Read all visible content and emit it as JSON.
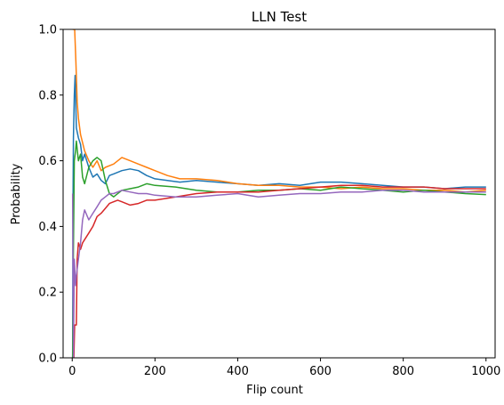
{
  "chart_data": {
    "type": "line",
    "title": "LLN Test",
    "xlabel": "Flip count",
    "ylabel": "Probability",
    "xlim": [
      -22,
      1022
    ],
    "ylim": [
      0.0,
      1.0
    ],
    "xticks": [
      0,
      200,
      400,
      600,
      800,
      1000
    ],
    "yticks": [
      0.0,
      0.2,
      0.4,
      0.6,
      0.8,
      1.0
    ],
    "xtick_labels": [
      "0",
      "200",
      "400",
      "600",
      "800",
      "1000"
    ],
    "ytick_labels": [
      "0.0",
      "0.2",
      "0.4",
      "0.6",
      "0.8",
      "1.0"
    ],
    "grid": false,
    "legend": "none",
    "series": [
      {
        "color": "#1f77b4",
        "points": [
          [
            1,
            0.0
          ],
          [
            2,
            0.5
          ],
          [
            3,
            0.67
          ],
          [
            5,
            0.8
          ],
          [
            7,
            0.86
          ],
          [
            10,
            0.7
          ],
          [
            15,
            0.67
          ],
          [
            20,
            0.65
          ],
          [
            25,
            0.6
          ],
          [
            30,
            0.62
          ],
          [
            40,
            0.58
          ],
          [
            50,
            0.55
          ],
          [
            60,
            0.56
          ],
          [
            70,
            0.54
          ],
          [
            80,
            0.53
          ],
          [
            90,
            0.555
          ],
          [
            100,
            0.56
          ],
          [
            120,
            0.57
          ],
          [
            140,
            0.575
          ],
          [
            160,
            0.57
          ],
          [
            180,
            0.555
          ],
          [
            200,
            0.545
          ],
          [
            230,
            0.54
          ],
          [
            260,
            0.535
          ],
          [
            300,
            0.54
          ],
          [
            350,
            0.535
          ],
          [
            400,
            0.53
          ],
          [
            450,
            0.525
          ],
          [
            500,
            0.53
          ],
          [
            550,
            0.525
          ],
          [
            600,
            0.535
          ],
          [
            650,
            0.535
          ],
          [
            700,
            0.53
          ],
          [
            750,
            0.525
          ],
          [
            800,
            0.52
          ],
          [
            850,
            0.52
          ],
          [
            900,
            0.515
          ],
          [
            950,
            0.52
          ],
          [
            1000,
            0.52
          ]
        ]
      },
      {
        "color": "#ff7f0e",
        "points": [
          [
            1,
            1.0
          ],
          [
            3,
            1.0
          ],
          [
            6,
            1.0
          ],
          [
            9,
            0.9
          ],
          [
            12,
            0.78
          ],
          [
            15,
            0.73
          ],
          [
            20,
            0.68
          ],
          [
            30,
            0.63
          ],
          [
            40,
            0.6
          ],
          [
            50,
            0.58
          ],
          [
            60,
            0.6
          ],
          [
            70,
            0.57
          ],
          [
            80,
            0.58
          ],
          [
            100,
            0.59
          ],
          [
            120,
            0.61
          ],
          [
            140,
            0.6
          ],
          [
            160,
            0.59
          ],
          [
            180,
            0.58
          ],
          [
            200,
            0.57
          ],
          [
            230,
            0.555
          ],
          [
            260,
            0.545
          ],
          [
            300,
            0.545
          ],
          [
            350,
            0.54
          ],
          [
            400,
            0.53
          ],
          [
            450,
            0.525
          ],
          [
            500,
            0.525
          ],
          [
            550,
            0.52
          ],
          [
            600,
            0.52
          ],
          [
            650,
            0.515
          ],
          [
            700,
            0.52
          ],
          [
            750,
            0.515
          ],
          [
            800,
            0.515
          ],
          [
            850,
            0.51
          ],
          [
            900,
            0.51
          ],
          [
            950,
            0.505
          ],
          [
            1000,
            0.51
          ]
        ]
      },
      {
        "color": "#2ca02c",
        "points": [
          [
            1,
            0.0
          ],
          [
            3,
            0.33
          ],
          [
            5,
            0.6
          ],
          [
            8,
            0.63
          ],
          [
            10,
            0.66
          ],
          [
            15,
            0.6
          ],
          [
            20,
            0.62
          ],
          [
            25,
            0.55
          ],
          [
            30,
            0.53
          ],
          [
            40,
            0.58
          ],
          [
            50,
            0.6
          ],
          [
            60,
            0.61
          ],
          [
            70,
            0.6
          ],
          [
            80,
            0.54
          ],
          [
            90,
            0.5
          ],
          [
            100,
            0.49
          ],
          [
            120,
            0.51
          ],
          [
            140,
            0.515
          ],
          [
            160,
            0.52
          ],
          [
            180,
            0.53
          ],
          [
            200,
            0.525
          ],
          [
            250,
            0.52
          ],
          [
            300,
            0.51
          ],
          [
            350,
            0.505
          ],
          [
            400,
            0.505
          ],
          [
            450,
            0.51
          ],
          [
            500,
            0.51
          ],
          [
            550,
            0.515
          ],
          [
            600,
            0.51
          ],
          [
            650,
            0.52
          ],
          [
            700,
            0.515
          ],
          [
            750,
            0.51
          ],
          [
            800,
            0.505
          ],
          [
            850,
            0.51
          ],
          [
            900,
            0.505
          ],
          [
            950,
            0.5
          ],
          [
            1000,
            0.497
          ]
        ]
      },
      {
        "color": "#d62728",
        "points": [
          [
            1,
            0.0
          ],
          [
            4,
            0.0
          ],
          [
            6,
            0.1
          ],
          [
            10,
            0.1
          ],
          [
            12,
            0.3
          ],
          [
            15,
            0.35
          ],
          [
            20,
            0.33
          ],
          [
            25,
            0.35
          ],
          [
            30,
            0.36
          ],
          [
            40,
            0.38
          ],
          [
            50,
            0.4
          ],
          [
            60,
            0.43
          ],
          [
            70,
            0.44
          ],
          [
            80,
            0.455
          ],
          [
            90,
            0.47
          ],
          [
            100,
            0.475
          ],
          [
            110,
            0.48
          ],
          [
            120,
            0.475
          ],
          [
            140,
            0.465
          ],
          [
            160,
            0.47
          ],
          [
            180,
            0.48
          ],
          [
            200,
            0.48
          ],
          [
            250,
            0.49
          ],
          [
            300,
            0.5
          ],
          [
            350,
            0.505
          ],
          [
            400,
            0.505
          ],
          [
            450,
            0.505
          ],
          [
            500,
            0.51
          ],
          [
            550,
            0.515
          ],
          [
            600,
            0.52
          ],
          [
            650,
            0.525
          ],
          [
            700,
            0.525
          ],
          [
            750,
            0.52
          ],
          [
            800,
            0.52
          ],
          [
            850,
            0.52
          ],
          [
            900,
            0.515
          ],
          [
            950,
            0.515
          ],
          [
            1000,
            0.515
          ]
        ]
      },
      {
        "color": "#9467bd",
        "points": [
          [
            1,
            0.5
          ],
          [
            3,
            0.0
          ],
          [
            5,
            0.3
          ],
          [
            8,
            0.22
          ],
          [
            10,
            0.25
          ],
          [
            15,
            0.3
          ],
          [
            20,
            0.35
          ],
          [
            25,
            0.42
          ],
          [
            30,
            0.45
          ],
          [
            40,
            0.42
          ],
          [
            50,
            0.44
          ],
          [
            60,
            0.46
          ],
          [
            70,
            0.48
          ],
          [
            80,
            0.49
          ],
          [
            90,
            0.5
          ],
          [
            100,
            0.5
          ],
          [
            120,
            0.51
          ],
          [
            140,
            0.505
          ],
          [
            160,
            0.5
          ],
          [
            180,
            0.5
          ],
          [
            200,
            0.495
          ],
          [
            250,
            0.49
          ],
          [
            300,
            0.49
          ],
          [
            350,
            0.495
          ],
          [
            400,
            0.5
          ],
          [
            450,
            0.49
          ],
          [
            500,
            0.495
          ],
          [
            550,
            0.5
          ],
          [
            600,
            0.5
          ],
          [
            650,
            0.505
          ],
          [
            700,
            0.505
          ],
          [
            750,
            0.51
          ],
          [
            800,
            0.51
          ],
          [
            850,
            0.505
          ],
          [
            900,
            0.505
          ],
          [
            950,
            0.505
          ],
          [
            1000,
            0.505
          ]
        ]
      }
    ]
  }
}
